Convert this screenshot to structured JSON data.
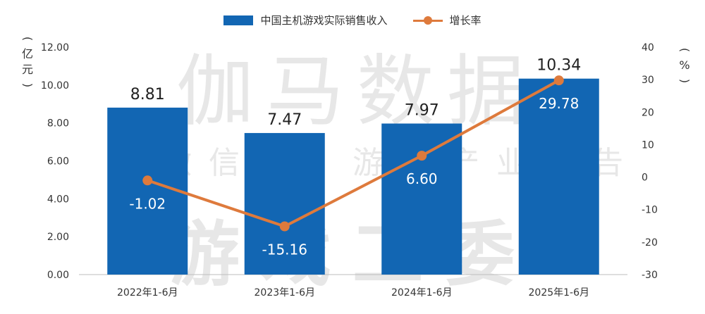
{
  "legend": {
    "bar_label": "中国主机游戏实际销售收入",
    "line_label": "增长率"
  },
  "units": {
    "left": "亿元",
    "right": "%"
  },
  "watermark": {
    "line1": "伽马数据",
    "line2": "微信号：游戏产业报告",
    "line3": "游戏工委"
  },
  "colors": {
    "bar": "#1266B3",
    "line": "#DE7A3C"
  },
  "chart_data": {
    "type": "bar",
    "categories": [
      "2022年1-6月",
      "2023年1-6月",
      "2024年1-6月",
      "2025年1-6月"
    ],
    "series": [
      {
        "name": "中国主机游戏实际销售收入",
        "type": "bar",
        "axis": "left",
        "values": [
          8.81,
          7.47,
          7.97,
          10.34
        ]
      },
      {
        "name": "增长率",
        "type": "line",
        "axis": "right",
        "values": [
          -1.02,
          -15.16,
          6.6,
          29.78
        ]
      }
    ],
    "value_labels_bar": [
      "8.81",
      "7.47",
      "7.97",
      "10.34"
    ],
    "value_labels_line": [
      "-1.02",
      "-15.16",
      "6.60",
      "29.78"
    ],
    "y_left": {
      "ylim": [
        0,
        12
      ],
      "ticks": [
        "0.00",
        "2.00",
        "4.00",
        "6.00",
        "8.00",
        "10.00",
        "12.00"
      ],
      "label": "亿元"
    },
    "y_right": {
      "ylim": [
        -30,
        40
      ],
      "ticks": [
        "-30",
        "-20",
        "-10",
        "0",
        "10",
        "20",
        "30",
        "40"
      ],
      "label": "%"
    },
    "grid": false,
    "legend_position": "top-center"
  }
}
